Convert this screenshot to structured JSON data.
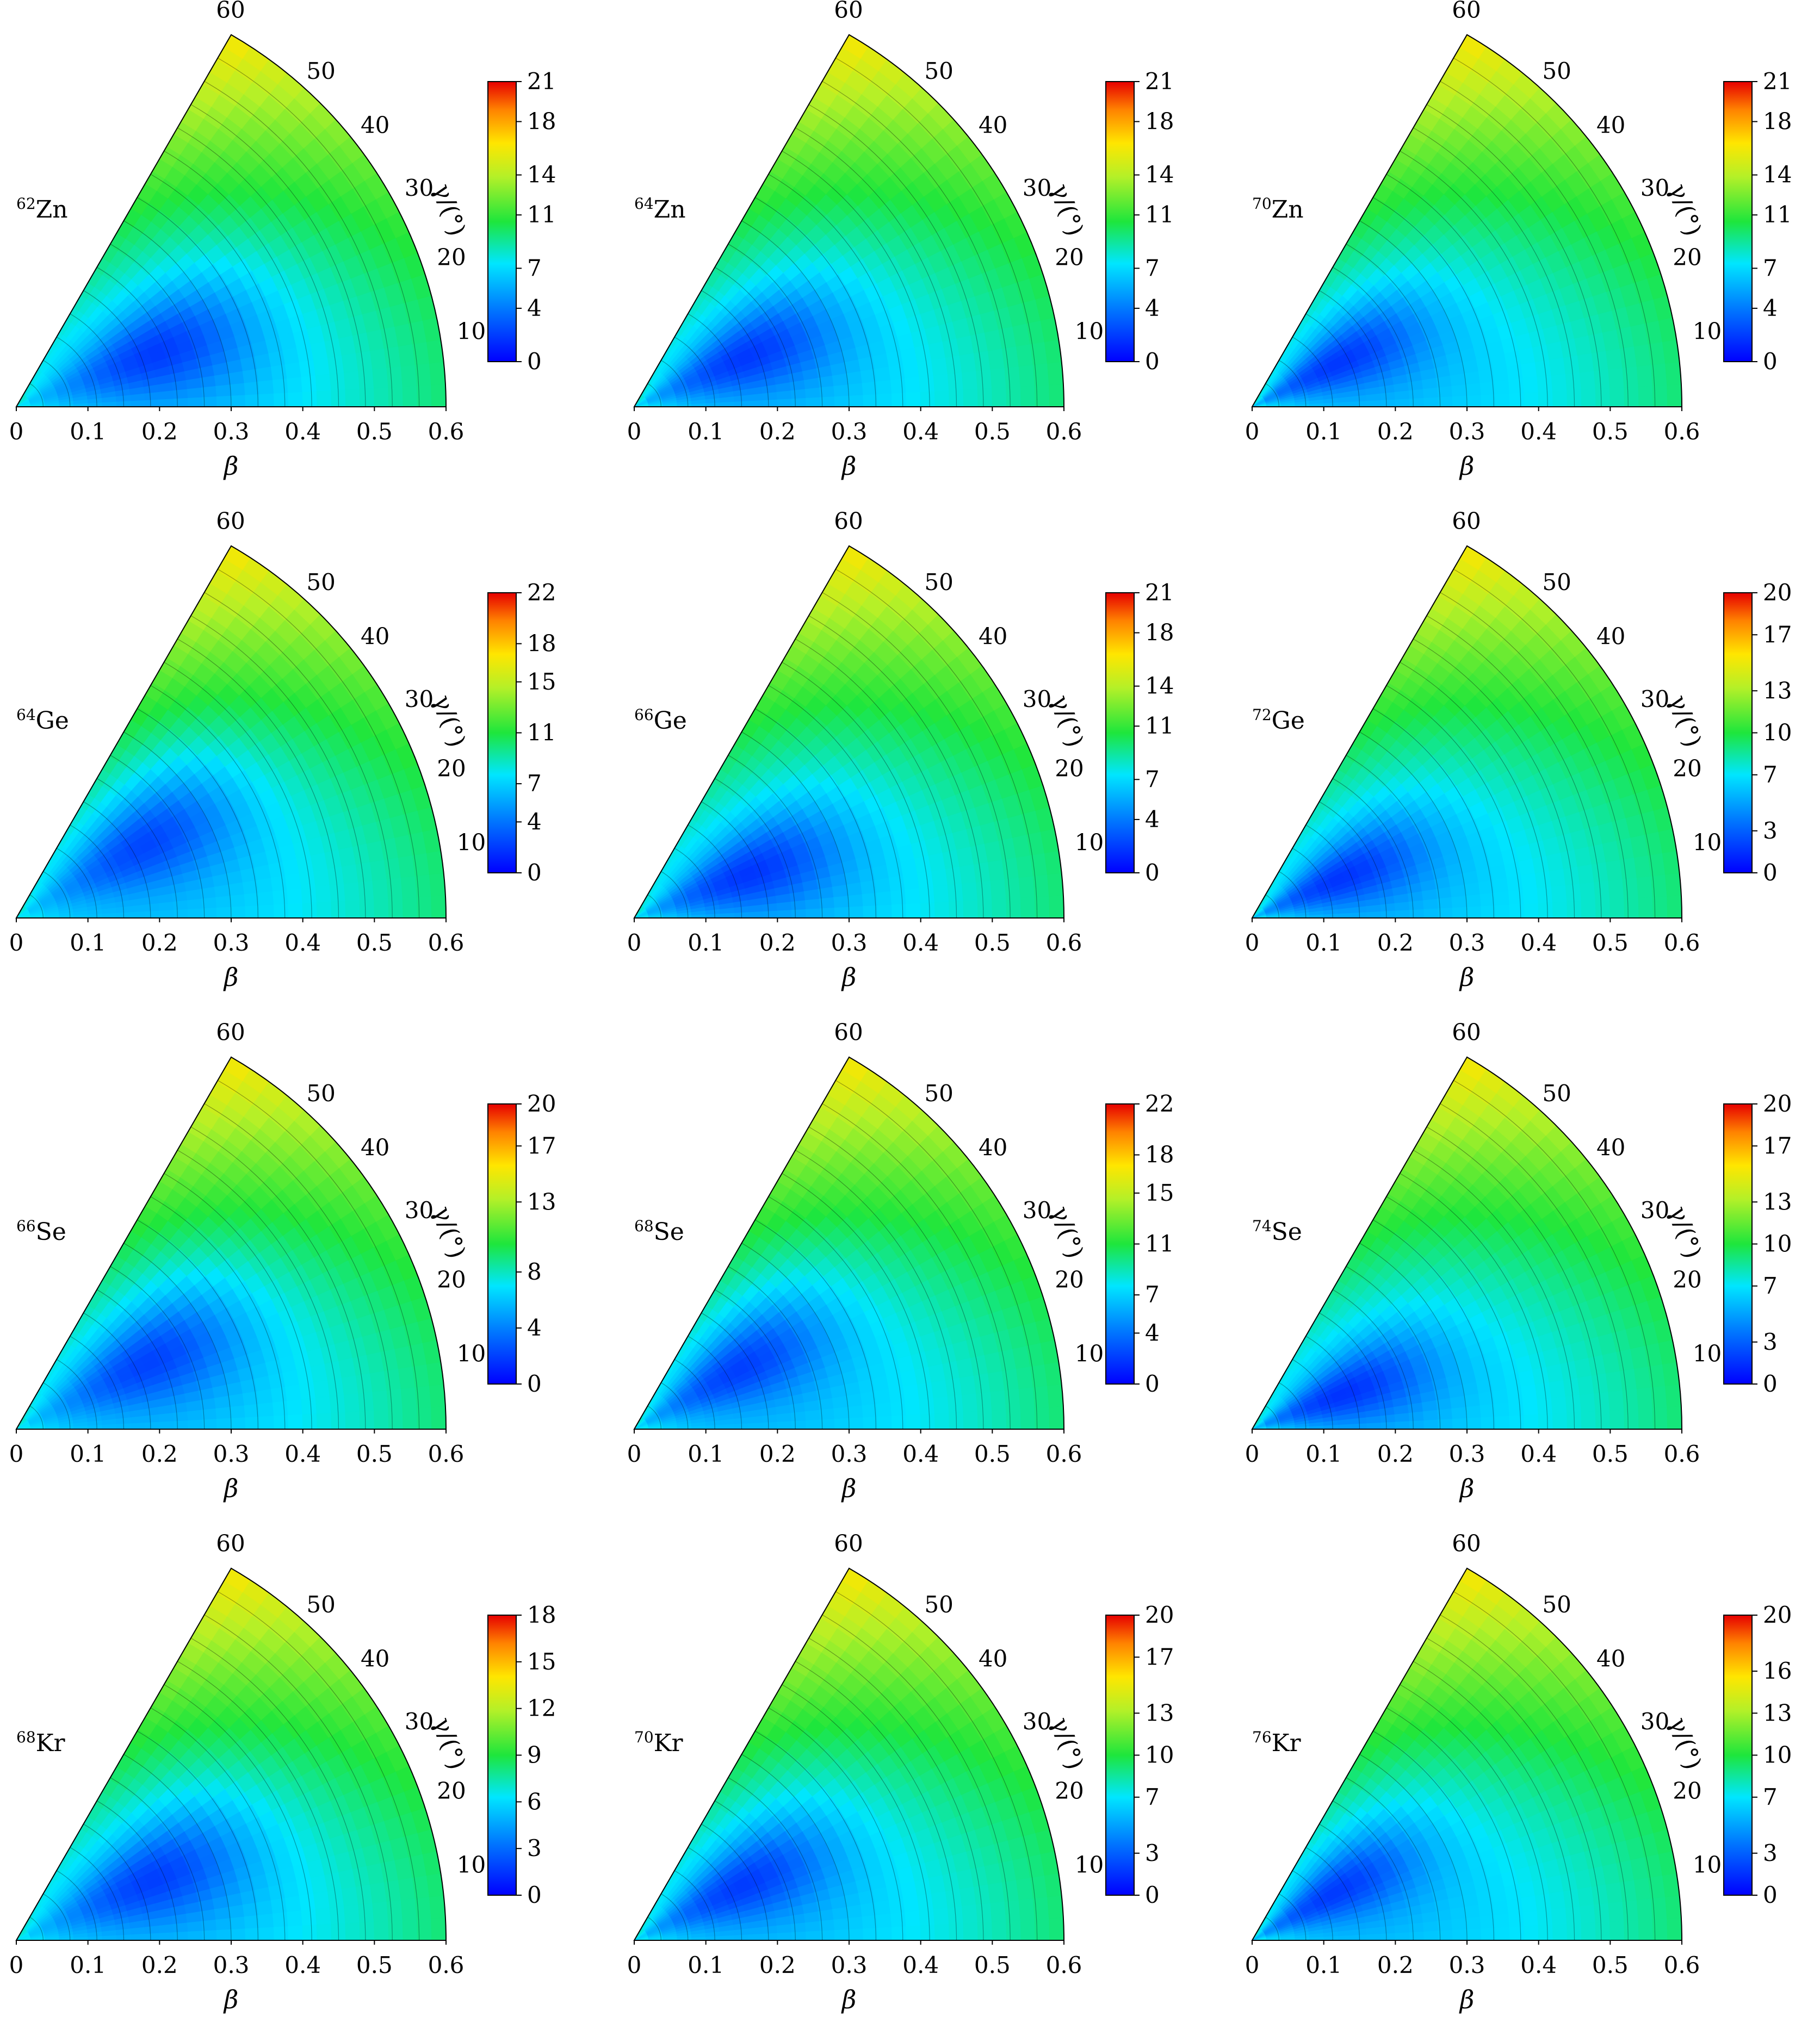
{
  "figure": {
    "panels": [
      {
        "nucleus_sup": "62",
        "nucleus_sym": "Zn",
        "cbar_ticks": [
          "0",
          "4",
          "7",
          "11",
          "14",
          "18",
          "21"
        ],
        "vmax": 21
      },
      {
        "nucleus_sup": "64",
        "nucleus_sym": "Zn",
        "cbar_ticks": [
          "0",
          "4",
          "7",
          "11",
          "14",
          "18",
          "21"
        ],
        "vmax": 21
      },
      {
        "nucleus_sup": "70",
        "nucleus_sym": "Zn",
        "cbar_ticks": [
          "0",
          "4",
          "7",
          "11",
          "14",
          "18",
          "21"
        ],
        "vmax": 21
      },
      {
        "nucleus_sup": "64",
        "nucleus_sym": "Ge",
        "cbar_ticks": [
          "0",
          "4",
          "7",
          "11",
          "15",
          "18",
          "22"
        ],
        "vmax": 22
      },
      {
        "nucleus_sup": "66",
        "nucleus_sym": "Ge",
        "cbar_ticks": [
          "0",
          "4",
          "7",
          "11",
          "14",
          "18",
          "21"
        ],
        "vmax": 21
      },
      {
        "nucleus_sup": "72",
        "nucleus_sym": "Ge",
        "cbar_ticks": [
          "0",
          "3",
          "7",
          "10",
          "13",
          "17",
          "20"
        ],
        "vmax": 20
      },
      {
        "nucleus_sup": "66",
        "nucleus_sym": "Se",
        "cbar_ticks": [
          "0",
          "4",
          "8",
          "13",
          "17",
          "20"
        ],
        "vmax": 20
      },
      {
        "nucleus_sup": "68",
        "nucleus_sym": "Se",
        "cbar_ticks": [
          "0",
          "4",
          "7",
          "11",
          "15",
          "18",
          "22"
        ],
        "vmax": 22
      },
      {
        "nucleus_sup": "74",
        "nucleus_sym": "Se",
        "cbar_ticks": [
          "0",
          "3",
          "7",
          "10",
          "13",
          "17",
          "20"
        ],
        "vmax": 20
      },
      {
        "nucleus_sup": "68",
        "nucleus_sym": "Kr",
        "cbar_ticks": [
          "0",
          "3",
          "6",
          "9",
          "12",
          "15",
          "18"
        ],
        "vmax": 18
      },
      {
        "nucleus_sup": "70",
        "nucleus_sym": "Kr",
        "cbar_ticks": [
          "0",
          "3",
          "7",
          "10",
          "13",
          "17",
          "20"
        ],
        "vmax": 20
      },
      {
        "nucleus_sup": "76",
        "nucleus_sym": "Kr",
        "cbar_ticks": [
          "0",
          "3",
          "7",
          "10",
          "13",
          "16",
          "20"
        ],
        "vmax": 20
      }
    ],
    "beta_ticks": [
      "0",
      "0.1",
      "0.2",
      "0.3",
      "0.4",
      "0.5",
      "0.6"
    ],
    "gamma_ticks": [
      "10",
      "20",
      "30",
      "40",
      "50",
      "60"
    ],
    "xlabel": "β",
    "gamma_label": "γ/(°)"
  },
  "chart_data": {
    "type": "heatmap",
    "coordinate_system": "polar (beta, gamma) sextant",
    "beta_range": [
      0,
      0.6
    ],
    "gamma_range": [
      0,
      60
    ],
    "colormap": "jet",
    "contours": true,
    "panels": [
      {
        "nucleus": "62Zn",
        "colorbar_range": [
          0,
          21
        ]
      },
      {
        "nucleus": "64Zn",
        "colorbar_range": [
          0,
          21
        ]
      },
      {
        "nucleus": "70Zn",
        "colorbar_range": [
          0,
          21
        ]
      },
      {
        "nucleus": "64Ge",
        "colorbar_range": [
          0,
          22
        ]
      },
      {
        "nucleus": "66Ge",
        "colorbar_range": [
          0,
          21
        ]
      },
      {
        "nucleus": "72Ge",
        "colorbar_range": [
          0,
          20
        ]
      },
      {
        "nucleus": "66Se",
        "colorbar_range": [
          0,
          20
        ]
      },
      {
        "nucleus": "68Se",
        "colorbar_range": [
          0,
          22
        ]
      },
      {
        "nucleus": "74Se",
        "colorbar_range": [
          0,
          20
        ]
      },
      {
        "nucleus": "68Kr",
        "colorbar_range": [
          0,
          18
        ]
      },
      {
        "nucleus": "70Kr",
        "colorbar_range": [
          0,
          20
        ]
      },
      {
        "nucleus": "76Kr",
        "colorbar_range": [
          0,
          20
        ]
      }
    ]
  }
}
